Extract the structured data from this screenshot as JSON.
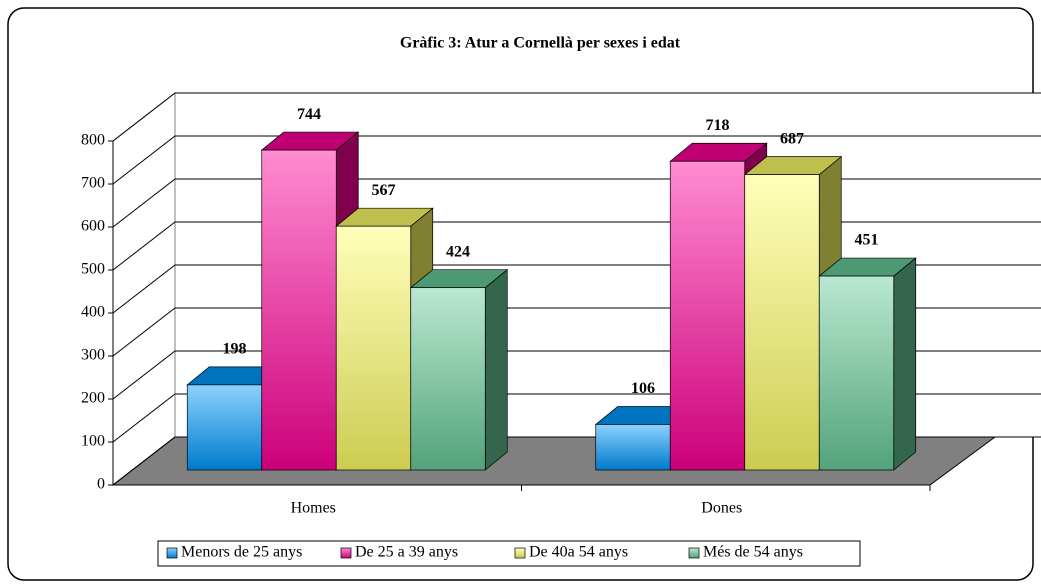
{
  "chart_data": {
    "type": "bar3d",
    "title": "Gràfic 3: Atur a Cornellà per sexes i edat",
    "categories": [
      "Homes",
      "Dones"
    ],
    "series": [
      {
        "name": "Menors de 25 anys",
        "color": "#0099ff",
        "values": [
          198,
          106
        ]
      },
      {
        "name": "De 25 a 39 anys",
        "color": "#ff0099",
        "values": [
          744,
          718
        ]
      },
      {
        "name": "De 40a 54 anys",
        "color": "#ffff66",
        "values": [
          567,
          687
        ]
      },
      {
        "name": "Més de 54 anys",
        "color": "#66cc99",
        "values": [
          424,
          451
        ]
      }
    ],
    "ylim": [
      0,
      800
    ],
    "yticks": [
      0,
      100,
      200,
      300,
      400,
      500,
      600,
      700,
      800
    ],
    "grid": true,
    "legend": "bottom"
  }
}
